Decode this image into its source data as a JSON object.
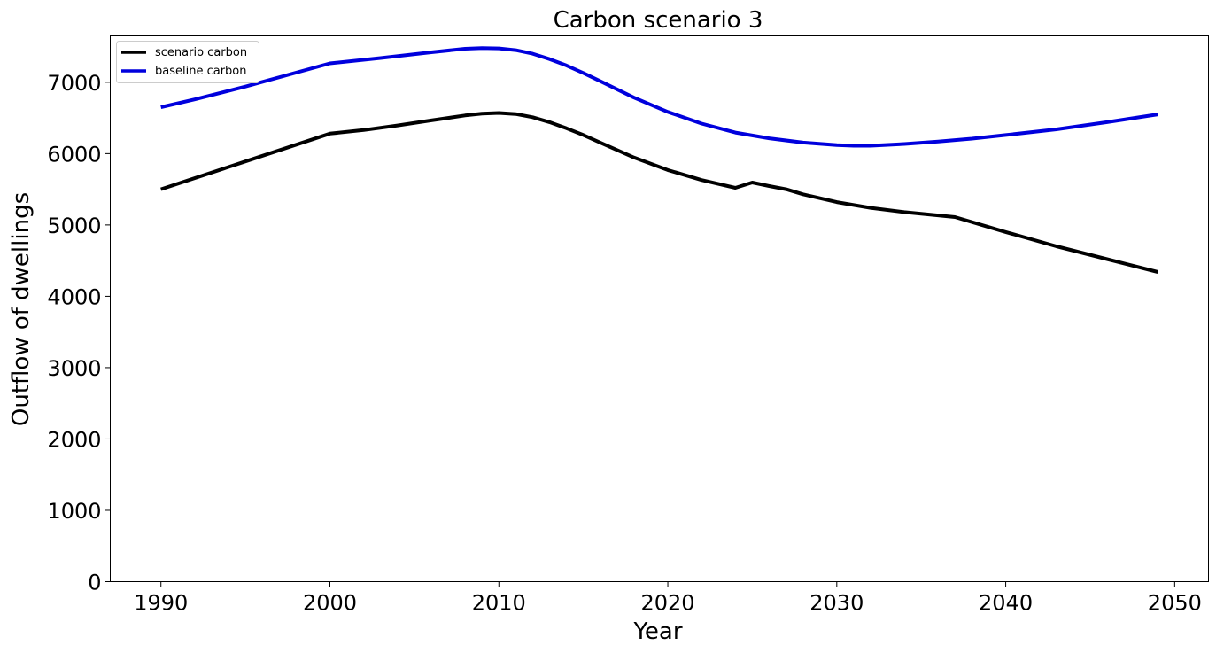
{
  "chart_data": {
    "type": "line",
    "title": "Carbon scenario 3",
    "xlabel": "Year",
    "ylabel": "Outflow of dwellings",
    "xlim": [
      1987,
      2052
    ],
    "ylim": [
      0,
      7650
    ],
    "xticks": [
      1990,
      2000,
      2010,
      2020,
      2030,
      2040,
      2050
    ],
    "yticks": [
      0,
      1000,
      2000,
      3000,
      4000,
      5000,
      6000,
      7000
    ],
    "grid": false,
    "legend_position": "top-left",
    "series": [
      {
        "name": "scenario carbon",
        "color": "#000000",
        "points": [
          [
            1990,
            5500
          ],
          [
            1995,
            5890
          ],
          [
            2000,
            6280
          ],
          [
            2002,
            6330
          ],
          [
            2004,
            6395
          ],
          [
            2006,
            6465
          ],
          [
            2008,
            6535
          ],
          [
            2009,
            6560
          ],
          [
            2010,
            6570
          ],
          [
            2011,
            6555
          ],
          [
            2012,
            6510
          ],
          [
            2013,
            6440
          ],
          [
            2014,
            6355
          ],
          [
            2015,
            6260
          ],
          [
            2016,
            6155
          ],
          [
            2018,
            5945
          ],
          [
            2020,
            5770
          ],
          [
            2022,
            5630
          ],
          [
            2024,
            5520
          ],
          [
            2025,
            5595
          ],
          [
            2026,
            5545
          ],
          [
            2027,
            5500
          ],
          [
            2028,
            5430
          ],
          [
            2030,
            5320
          ],
          [
            2032,
            5240
          ],
          [
            2034,
            5180
          ],
          [
            2037,
            5110
          ],
          [
            2040,
            4900
          ],
          [
            2043,
            4700
          ],
          [
            2046,
            4520
          ],
          [
            2049,
            4340
          ]
        ]
      },
      {
        "name": "baseline carbon",
        "color": "#0000dd",
        "points": [
          [
            1990,
            6650
          ],
          [
            1992,
            6760
          ],
          [
            1995,
            6940
          ],
          [
            2000,
            7265
          ],
          [
            2003,
            7340
          ],
          [
            2006,
            7420
          ],
          [
            2008,
            7470
          ],
          [
            2009,
            7480
          ],
          [
            2010,
            7475
          ],
          [
            2011,
            7450
          ],
          [
            2012,
            7400
          ],
          [
            2013,
            7325
          ],
          [
            2014,
            7235
          ],
          [
            2015,
            7130
          ],
          [
            2016,
            7015
          ],
          [
            2018,
            6785
          ],
          [
            2020,
            6585
          ],
          [
            2022,
            6420
          ],
          [
            2024,
            6295
          ],
          [
            2026,
            6215
          ],
          [
            2028,
            6155
          ],
          [
            2030,
            6120
          ],
          [
            2031,
            6110
          ],
          [
            2032,
            6110
          ],
          [
            2034,
            6135
          ],
          [
            2036,
            6170
          ],
          [
            2038,
            6210
          ],
          [
            2040,
            6260
          ],
          [
            2043,
            6340
          ],
          [
            2046,
            6440
          ],
          [
            2049,
            6550
          ]
        ]
      }
    ]
  }
}
